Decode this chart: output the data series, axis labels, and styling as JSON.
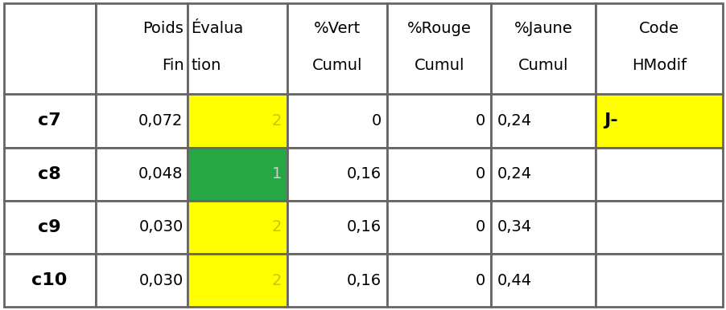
{
  "col_headers": [
    [
      "Poids",
      "Fin"
    ],
    [
      "Évalua",
      "tion"
    ],
    [
      "%Vert",
      "Cumul"
    ],
    [
      "%Rouge",
      "Cumul"
    ],
    [
      "%Jaune",
      "Cumul"
    ],
    [
      "Code",
      "HModif"
    ]
  ],
  "row_labels": [
    "c7",
    "c8",
    "c9",
    "c10"
  ],
  "poids": [
    "0,072",
    "0,048",
    "0,030",
    "0,030"
  ],
  "evaluation": [
    "2",
    "1",
    "2",
    "2"
  ],
  "vert_cumul": [
    "0",
    "0,16",
    "0,16",
    "0,16"
  ],
  "rouge_cumul": [
    "0",
    "0",
    "0",
    "0"
  ],
  "jaune_cumul": [
    "0,24",
    "0,24",
    "0,34",
    "0,44"
  ],
  "code_hmodif": [
    "J-",
    "",
    "",
    ""
  ],
  "eval_bg": [
    "#FFFF00",
    "#27A744",
    "#FFFF00",
    "#FFFF00"
  ],
  "eval_text_color": [
    "#C8C800",
    "#CCCCCC",
    "#C8C800",
    "#C8C800"
  ],
  "code_bg": [
    "#FFFF00",
    "#FFFFFF",
    "#FFFFFF",
    "#FFFFFF"
  ],
  "code_text_color": [
    "#000000",
    "#000000",
    "#000000",
    "#000000"
  ],
  "header_bg": "#FFFFFF",
  "row_bg": "#FFFFFF",
  "border_color": "#666666",
  "text_color": "#000000",
  "figsize": [
    9.03,
    3.86
  ],
  "dpi": 100
}
